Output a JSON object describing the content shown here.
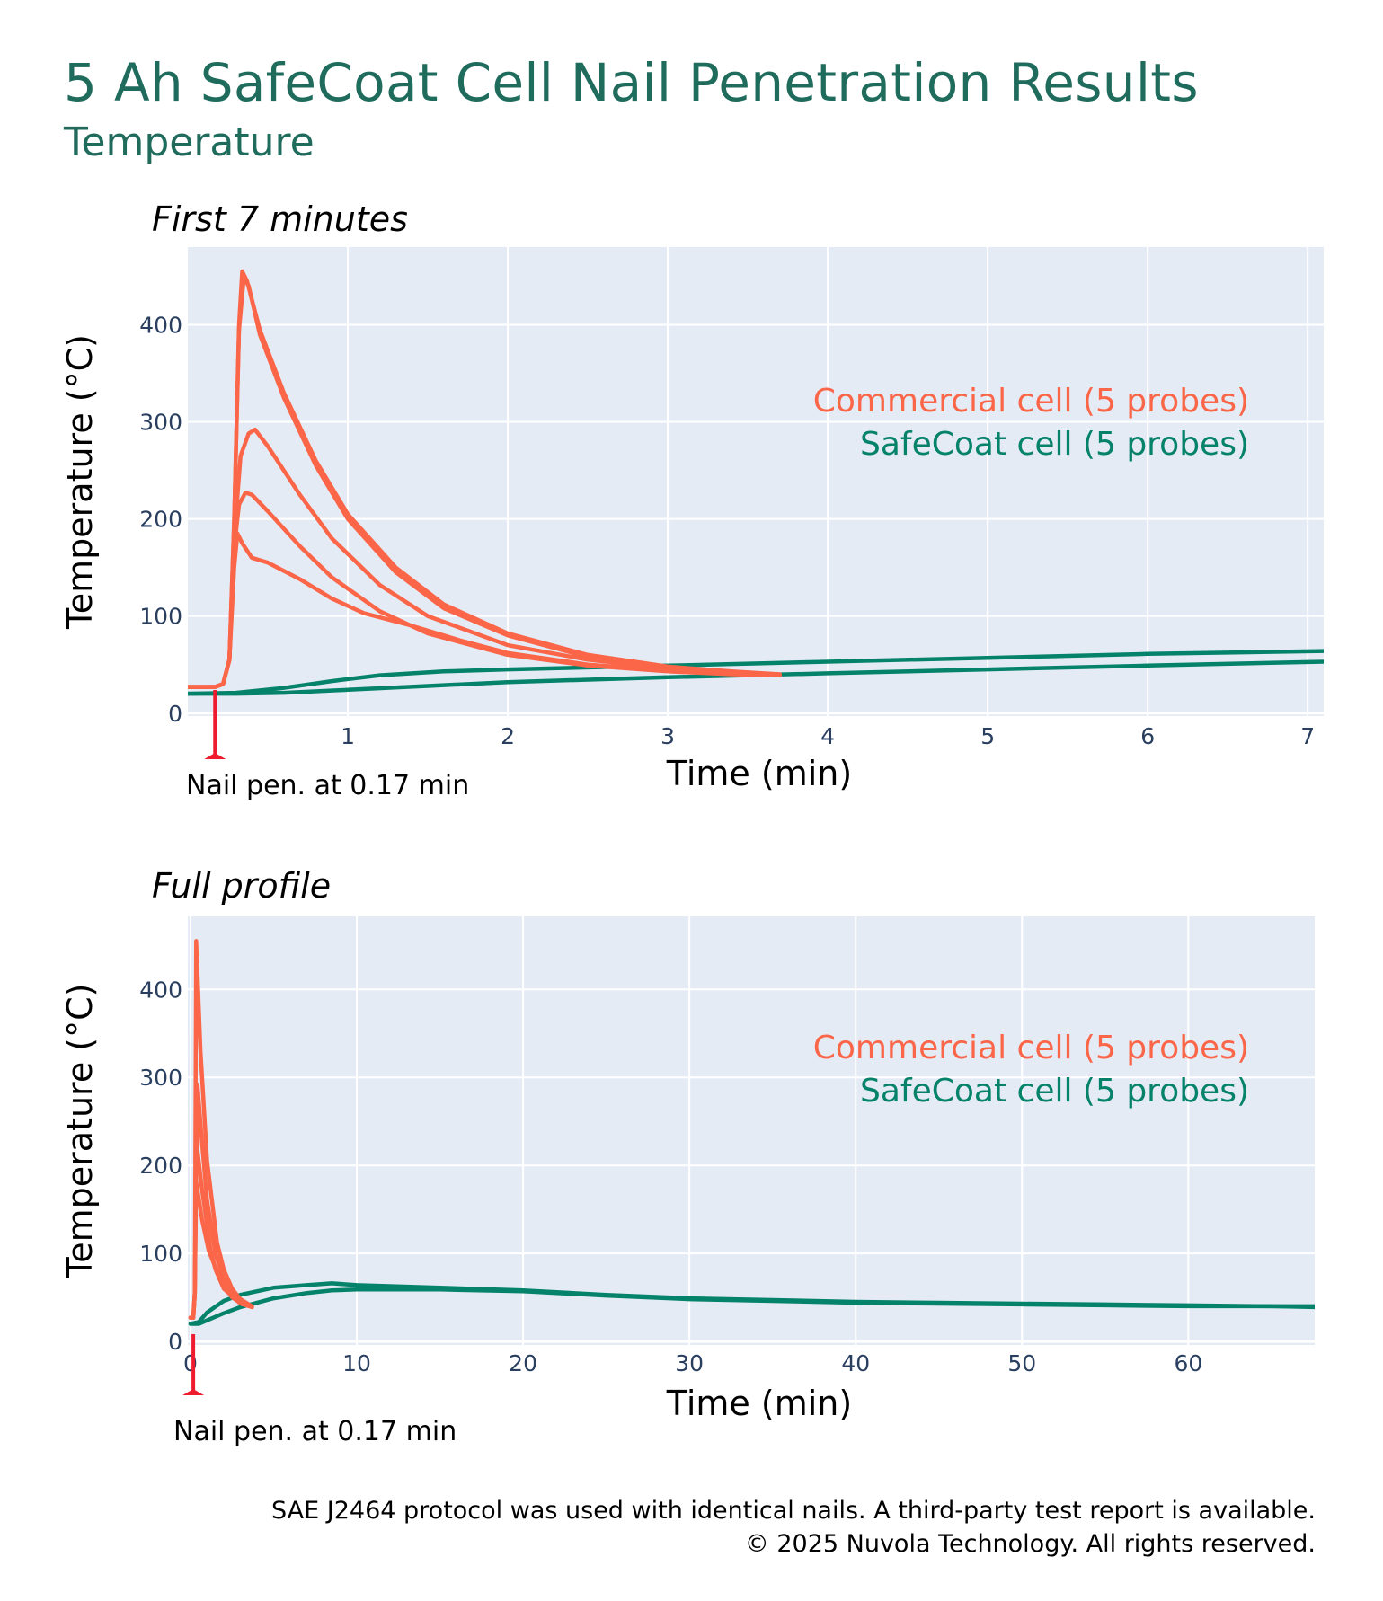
{
  "header": {
    "title": "5 Ah SafeCoat Cell Nail Penetration Results",
    "subtitle": "Temperature"
  },
  "colors": {
    "title": "#1f6b5c",
    "commercial": "#fb6548",
    "safecoat": "#05826a",
    "nail_marker": "#ee1c2e",
    "plot_bg": "#e5ebf5",
    "grid": "#ffffff",
    "tick": "#2a3f5f"
  },
  "chart_data": [
    {
      "id": "first7",
      "type": "line",
      "title": "First 7 minutes",
      "xlabel": "Time (min)",
      "ylabel": "Temperature (°C)",
      "xlim": [
        0,
        7.1
      ],
      "ylim": [
        -3,
        480
      ],
      "xticks": [
        1,
        2,
        3,
        4,
        5,
        6,
        7
      ],
      "yticks": [
        0,
        100,
        200,
        300,
        400
      ],
      "grid": true,
      "legend_position": "right",
      "legend": [
        "Commercial cell (5 probes)",
        "SafeCoat cell (5 probes)"
      ],
      "annotation": {
        "text": "Nail pen. at 0.17 min",
        "x": 0.17
      },
      "series": [
        {
          "name": "Commercial cell probe 1",
          "group": "commercial",
          "x": [
            0,
            0.17,
            0.22,
            0.26,
            0.29,
            0.32,
            0.34,
            0.37,
            0.45,
            0.6,
            0.8,
            1.0,
            1.3,
            1.6,
            2.0,
            2.5,
            3.0,
            3.4,
            3.7
          ],
          "y": [
            27,
            27,
            30,
            55,
            200,
            400,
            455,
            445,
            395,
            330,
            260,
            205,
            150,
            112,
            82,
            60,
            48,
            43,
            40
          ]
        },
        {
          "name": "Commercial cell probe 2",
          "group": "commercial",
          "x": [
            0,
            0.17,
            0.22,
            0.26,
            0.29,
            0.32,
            0.35,
            0.38,
            0.45,
            0.6,
            0.8,
            1.0,
            1.3,
            1.6,
            2.0,
            2.5,
            3.0,
            3.4,
            3.7
          ],
          "y": [
            27,
            27,
            30,
            55,
            200,
            395,
            448,
            440,
            390,
            325,
            255,
            200,
            145,
            108,
            80,
            58,
            47,
            42,
            39
          ]
        },
        {
          "name": "Commercial cell probe 3",
          "group": "commercial",
          "x": [
            0,
            0.17,
            0.22,
            0.26,
            0.29,
            0.33,
            0.38,
            0.42,
            0.5,
            0.7,
            0.9,
            1.2,
            1.5,
            2.0,
            2.5,
            3.0,
            3.4,
            3.7
          ],
          "y": [
            27,
            27,
            30,
            55,
            180,
            265,
            288,
            292,
            275,
            225,
            180,
            132,
            100,
            70,
            55,
            46,
            42,
            40
          ]
        },
        {
          "name": "Commercial cell probe 4",
          "group": "commercial",
          "x": [
            0,
            0.17,
            0.22,
            0.26,
            0.29,
            0.32,
            0.36,
            0.4,
            0.5,
            0.7,
            0.9,
            1.2,
            1.5,
            2.0,
            2.5,
            3.0,
            3.4,
            3.7
          ],
          "y": [
            27,
            27,
            30,
            55,
            170,
            215,
            227,
            225,
            208,
            172,
            140,
            105,
            82,
            60,
            49,
            43,
            40,
            39
          ]
        },
        {
          "name": "Commercial cell probe 5",
          "group": "commercial",
          "x": [
            0,
            0.17,
            0.22,
            0.26,
            0.29,
            0.31,
            0.34,
            0.4,
            0.5,
            0.7,
            0.9,
            1.1,
            1.4,
            1.7,
            2.0,
            2.5,
            3.0,
            3.4,
            3.7
          ],
          "y": [
            27,
            27,
            30,
            55,
            150,
            185,
            175,
            160,
            155,
            138,
            118,
            103,
            90,
            75,
            62,
            50,
            44,
            41,
            39
          ]
        },
        {
          "name": "SafeCoat cell upper probes",
          "group": "safecoat",
          "x": [
            0,
            0.3,
            0.6,
            0.9,
            1.2,
            1.6,
            2.0,
            3.0,
            4.0,
            5.0,
            6.0,
            7.1
          ],
          "y": [
            20,
            21,
            26,
            33,
            39,
            43,
            45,
            49,
            53,
            57,
            61,
            64
          ]
        },
        {
          "name": "SafeCoat cell lower probes",
          "group": "safecoat",
          "x": [
            0,
            0.3,
            0.6,
            1.0,
            1.5,
            2.0,
            3.0,
            4.0,
            5.0,
            6.0,
            7.1
          ],
          "y": [
            20,
            20,
            21,
            24,
            28,
            32,
            37,
            41,
            45,
            49,
            53
          ]
        }
      ]
    },
    {
      "id": "full",
      "type": "line",
      "title": "Full profile",
      "xlabel": "Time (min)",
      "ylabel": "Temperature (°C)",
      "xlim": [
        -0.16,
        67.6
      ],
      "ylim": [
        -4,
        483
      ],
      "xticks": [
        0,
        10,
        20,
        30,
        40,
        50,
        60
      ],
      "yticks": [
        0,
        100,
        200,
        300,
        400
      ],
      "grid": true,
      "legend_position": "right",
      "legend": [
        "Commercial cell (5 probes)",
        "SafeCoat cell (5 probes)"
      ],
      "annotation": {
        "text": "Nail pen. at 0.17 min",
        "x": 0.17
      },
      "series": [
        {
          "name": "Commercial cell probe 1",
          "group": "commercial",
          "x": [
            0,
            0.17,
            0.26,
            0.34,
            0.6,
            1.0,
            1.6,
            2.0,
            2.5,
            3.0,
            3.7
          ],
          "y": [
            27,
            27,
            55,
            455,
            330,
            205,
            112,
            82,
            60,
            48,
            40
          ]
        },
        {
          "name": "Commercial cell probe 2",
          "group": "commercial",
          "x": [
            0,
            0.17,
            0.26,
            0.42,
            0.7,
            1.0,
            1.5,
            2.0,
            2.5,
            3.0,
            3.7
          ],
          "y": [
            27,
            27,
            55,
            292,
            225,
            160,
            100,
            70,
            55,
            46,
            40
          ]
        },
        {
          "name": "Commercial cell probe 3",
          "group": "commercial",
          "x": [
            0,
            0.17,
            0.26,
            0.36,
            0.7,
            1.2,
            1.5,
            2.0,
            3.0,
            3.7
          ],
          "y": [
            27,
            27,
            55,
            227,
            172,
            105,
            82,
            60,
            43,
            39
          ]
        },
        {
          "name": "Commercial cell probe 4",
          "group": "commercial",
          "x": [
            0,
            0.17,
            0.26,
            0.31,
            0.7,
            1.1,
            1.7,
            2.5,
            3.0,
            3.7
          ],
          "y": [
            27,
            27,
            55,
            185,
            138,
            103,
            75,
            50,
            44,
            39
          ]
        },
        {
          "name": "SafeCoat cell upper probes",
          "group": "safecoat",
          "x": [
            0,
            0.5,
            1,
            2,
            3,
            5,
            7,
            8.5,
            10,
            15,
            20,
            25,
            30,
            35,
            40,
            45,
            50,
            55,
            60,
            65,
            67.6
          ],
          "y": [
            20,
            22,
            33,
            46,
            53,
            61,
            64,
            66,
            64,
            61,
            58,
            53,
            49,
            47,
            45,
            44,
            43,
            42,
            41,
            40,
            40
          ]
        },
        {
          "name": "SafeCoat cell lower probes",
          "group": "safecoat",
          "x": [
            0,
            0.5,
            1,
            2,
            3,
            5,
            7,
            8.5,
            10,
            15,
            20,
            25,
            30,
            35,
            40,
            45,
            50,
            55,
            60,
            65,
            67.6
          ],
          "y": [
            20,
            20,
            24,
            32,
            39,
            49,
            55,
            58,
            59,
            59,
            57,
            52,
            48,
            46,
            44,
            43,
            42,
            41,
            40,
            40,
            39
          ]
        }
      ]
    }
  ],
  "footer": {
    "line1": "SAE J2464 protocol was used with identical nails. A third-party test report is available.",
    "line2": "© 2025 Nuvola Technology. All rights reserved."
  }
}
